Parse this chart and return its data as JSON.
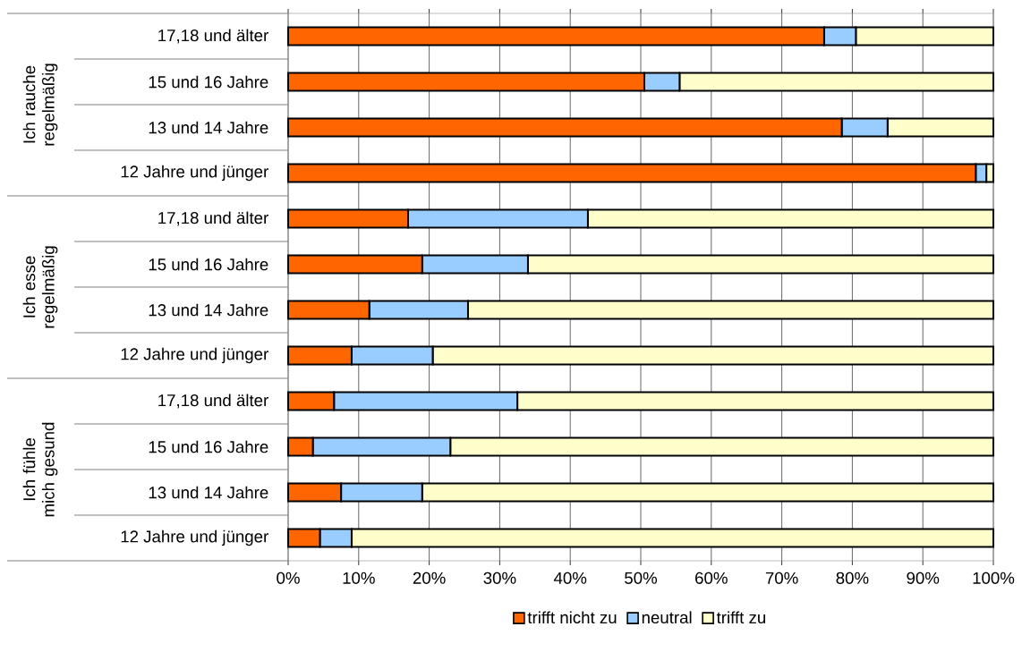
{
  "chart_data": {
    "type": "bar",
    "orientation": "horizontal",
    "stacked": true,
    "categories": [
      "17,18 und älter",
      "15 und 16 Jahre",
      "13 und 14 Jahre",
      "12 Jahre und jünger",
      "17,18 und älter",
      "15 und 16 Jahre",
      "13 und 14 Jahre",
      "12 Jahre und jünger",
      "17,18 und älter",
      "15 und 16 Jahre",
      "13 und 14 Jahre",
      "12 Jahre und jünger"
    ],
    "series": [
      {
        "name": "trifft nicht zu",
        "color": "#ff6600",
        "values": [
          76,
          50.5,
          78.5,
          97.5,
          17,
          19,
          11.5,
          9,
          6.5,
          3.5,
          7.5,
          4.5
        ]
      },
      {
        "name": "neutral",
        "color": "#99ccff",
        "values": [
          4.5,
          5,
          6.5,
          1.5,
          25.5,
          15,
          14,
          11.5,
          26,
          19.5,
          11.5,
          4.5
        ]
      },
      {
        "name": "trifft zu",
        "color": "#ffffcc",
        "values": [
          19.5,
          44.5,
          15,
          1,
          57.5,
          66,
          74.5,
          79.5,
          67.5,
          77,
          81,
          91
        ]
      }
    ],
    "annotations": [
      "Ich rauche regelmäßig",
      "Ich esse regelmäßig",
      "Ich fühle mich gesund"
    ],
    "xlim": [
      0,
      100
    ],
    "xticks": [
      {
        "value": 0,
        "label": "0%"
      },
      {
        "value": 10,
        "label": "10%"
      },
      {
        "value": 20,
        "label": "20%"
      },
      {
        "value": 30,
        "label": "30%"
      },
      {
        "value": 40,
        "label": "40%"
      },
      {
        "value": 50,
        "label": "50%"
      },
      {
        "value": 60,
        "label": "60%"
      },
      {
        "value": 70,
        "label": "70%"
      },
      {
        "value": 80,
        "label": "80%"
      },
      {
        "value": 90,
        "label": "90%"
      },
      {
        "value": 100,
        "label": "100%"
      }
    ],
    "grid": "x",
    "legend": "bottom"
  }
}
